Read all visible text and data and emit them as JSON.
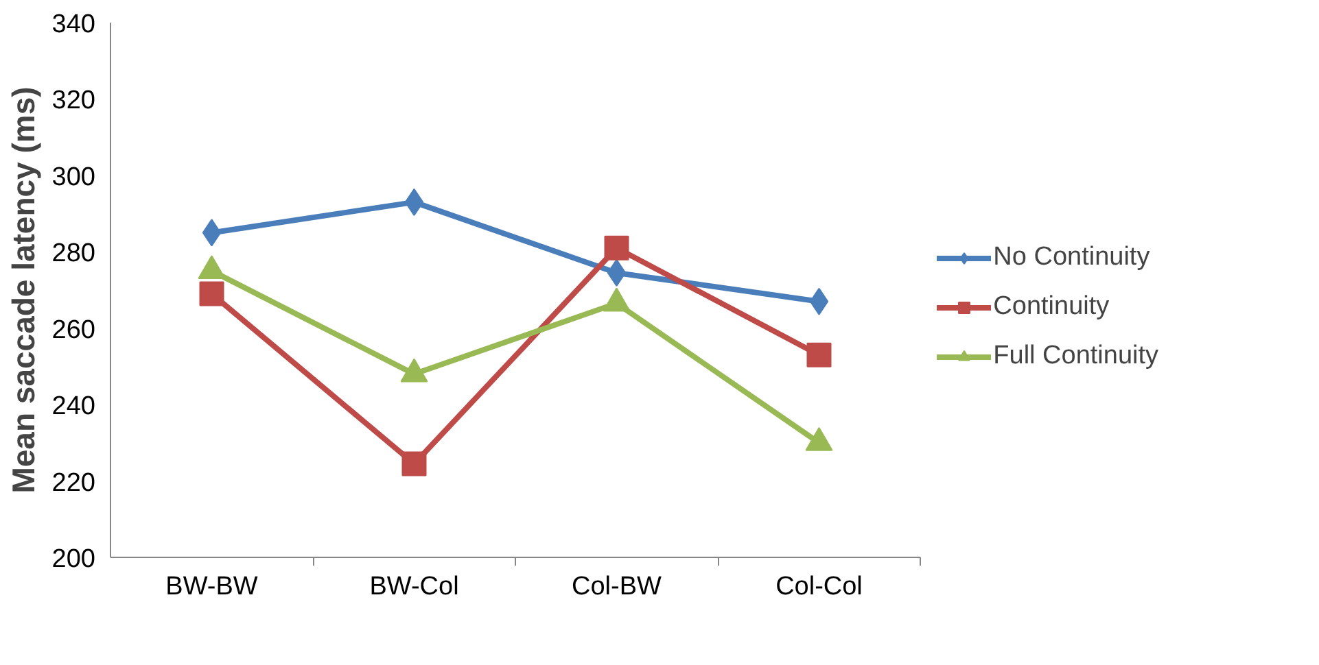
{
  "chart_data": {
    "type": "line",
    "ylabel": "Mean saccade latency (ms)",
    "categories": [
      "BW-BW",
      "BW-Col",
      "Col-BW",
      "Col-Col"
    ],
    "series": [
      {
        "name": "No Continuity",
        "color": "#4a7ebb",
        "marker": "diamond",
        "values": [
          285,
          293,
          274.5,
          267
        ]
      },
      {
        "name": "Continuity",
        "color": "#be4b48",
        "marker": "square",
        "values": [
          269,
          224.5,
          281,
          253
        ]
      },
      {
        "name": "Full Continuity",
        "color": "#98b954",
        "marker": "triangle",
        "values": [
          275,
          248,
          266.5,
          230
        ]
      }
    ],
    "ylim": [
      200,
      340
    ],
    "yticks": [
      200,
      220,
      240,
      260,
      280,
      300,
      320,
      340
    ],
    "grid": false,
    "legend": "right",
    "line_style": "solid"
  }
}
